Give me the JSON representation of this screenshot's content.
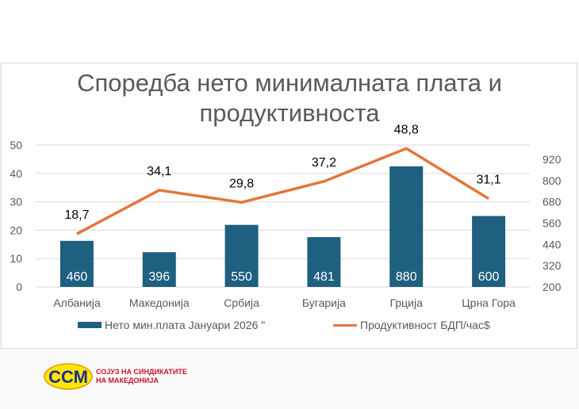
{
  "chart_data": {
    "type": "bar+line",
    "title_line1": "Споредба нето минималната плата  и",
    "title_line2": "продуктивноста",
    "categories": [
      "Албанија",
      "Македонија",
      "Србија",
      "Бугарија",
      "Грција",
      "Црна Гора"
    ],
    "series": [
      {
        "name": "Нето мин.плата  Јануари 2026 \"",
        "type": "bar",
        "axis": "right",
        "values": [
          460,
          396,
          550,
          481,
          880,
          600
        ],
        "labels": [
          "460",
          "396",
          "550",
          "481",
          "880",
          "600"
        ],
        "color": "#1f5f7f"
      },
      {
        "name": "Продуктивност БДП/час$",
        "type": "line",
        "axis": "left",
        "values": [
          18.7,
          34.1,
          29.8,
          37.2,
          48.8,
          31.1
        ],
        "labels": [
          "18,7",
          "34,1",
          "29,8",
          "37,2",
          "48,8",
          "31,1"
        ],
        "color": "#e3763a"
      }
    ],
    "left_axis": {
      "ylim": [
        0,
        50
      ],
      "ticks": [
        "0",
        "10",
        "20",
        "30",
        "40",
        "50"
      ]
    },
    "right_axis": {
      "ylim": [
        200,
        1000
      ],
      "ticks": [
        "200",
        "320",
        "440",
        "560",
        "680",
        "800",
        "920"
      ]
    },
    "grid": true,
    "legend": "bottom"
  },
  "logo": {
    "mark": "ССМ",
    "line1": "СОЈУЗ НА СИНДИКАТИТЕ",
    "line2": "НА МАКЕДОНИЈА"
  }
}
